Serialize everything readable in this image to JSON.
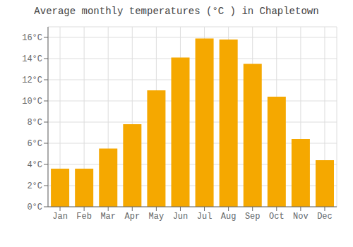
{
  "chart_data": {
    "type": "bar",
    "title": "Average monthly temperatures (°C ) in Chapletown",
    "categories": [
      "Jan",
      "Feb",
      "Mar",
      "Apr",
      "May",
      "Jun",
      "Jul",
      "Aug",
      "Sep",
      "Oct",
      "Nov",
      "Dec"
    ],
    "values": [
      3.6,
      3.6,
      5.5,
      7.8,
      11.0,
      14.1,
      15.9,
      15.8,
      13.5,
      10.4,
      6.4,
      4.4
    ],
    "color": "#F5A800",
    "ylim": [
      0,
      17
    ],
    "yticks": [
      {
        "value": 0,
        "label": "0°C"
      },
      {
        "value": 2,
        "label": "2°C"
      },
      {
        "value": 4,
        "label": "4°C"
      },
      {
        "value": 6,
        "label": "6°C"
      },
      {
        "value": 8,
        "label": "8°C"
      },
      {
        "value": 10,
        "label": "10°C"
      },
      {
        "value": 12,
        "label": "12°C"
      },
      {
        "value": 14,
        "label": "14°C"
      },
      {
        "value": 16,
        "label": "16°C"
      }
    ],
    "grid": true
  }
}
